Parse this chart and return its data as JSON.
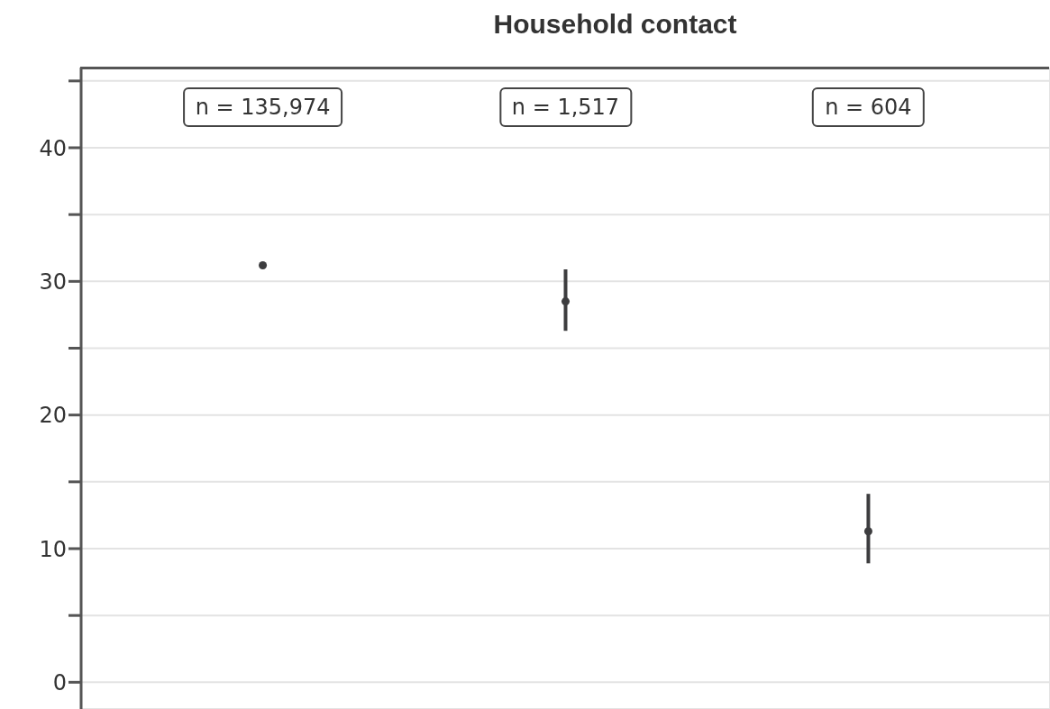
{
  "chart_data": {
    "type": "scatter",
    "title": "Household contact",
    "categories": [
      null,
      null,
      null
    ],
    "values": [
      31.2,
      28.5,
      11.3
    ],
    "errors": [
      null,
      [
        26.3,
        30.9
      ],
      [
        8.9,
        14.1
      ]
    ],
    "color": "#3d3d3f",
    "ylim": [
      -2,
      46
    ],
    "yticks": [
      0,
      {
        "value": 5,
        "label": null
      },
      10,
      {
        "value": 15,
        "label": null
      },
      20,
      {
        "value": 25,
        "label": null
      },
      30,
      {
        "value": 35,
        "label": null
      },
      40,
      {
        "value": 45,
        "label": null
      }
    ],
    "grid": true,
    "marker": "circle",
    "annotations": [
      "n = 135,974",
      "n = 1,517",
      "n = 604"
    ]
  }
}
